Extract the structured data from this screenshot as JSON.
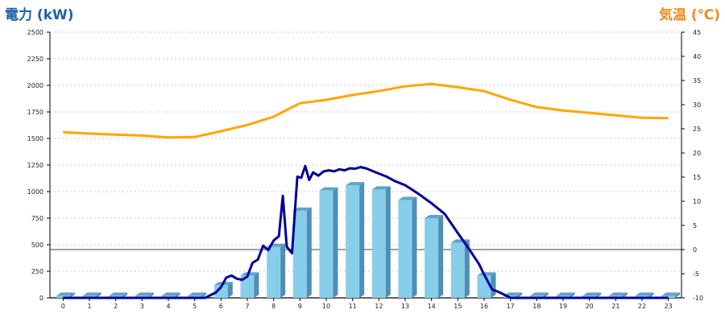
{
  "chart_data": {
    "type": "bar",
    "left_axis_title": "電力 (kW)",
    "right_axis_title": "気温 (℃)",
    "x_categories": [
      "0",
      "1",
      "2",
      "3",
      "4",
      "5",
      "6",
      "7",
      "8",
      "9",
      "10",
      "11",
      "12",
      "13",
      "14",
      "15",
      "16",
      "17",
      "18",
      "19",
      "20",
      "21",
      "22",
      "23"
    ],
    "left_ylim": [
      0,
      2500
    ],
    "left_ticks": [
      "0",
      "250",
      "500",
      "750",
      "1000",
      "1250",
      "1500",
      "1750",
      "2000",
      "2250",
      "2500"
    ],
    "right_ylim": [
      -10,
      45
    ],
    "right_ticks": [
      "-10",
      "-5",
      "0",
      "5",
      "10",
      "15",
      "20",
      "25",
      "30",
      "35",
      "40",
      "45"
    ],
    "grid": true,
    "series": [
      {
        "kind": "bar",
        "axis": "left",
        "color": "#87ceeb",
        "values": [
          20,
          20,
          20,
          20,
          20,
          20,
          120,
          210,
          480,
          820,
          1010,
          1060,
          1020,
          920,
          750,
          520,
          210,
          20,
          20,
          20,
          20,
          20,
          20,
          20
        ]
      },
      {
        "kind": "line",
        "axis": "left",
        "color": "#000099",
        "points": [
          [
            0,
            0
          ],
          [
            1,
            0
          ],
          [
            2,
            0
          ],
          [
            3,
            0
          ],
          [
            4,
            0
          ],
          [
            5,
            0
          ],
          [
            5.4,
            0
          ],
          [
            5.8,
            50
          ],
          [
            6.0,
            100
          ],
          [
            6.2,
            190
          ],
          [
            6.4,
            210
          ],
          [
            6.6,
            180
          ],
          [
            6.8,
            170
          ],
          [
            7.0,
            200
          ],
          [
            7.2,
            330
          ],
          [
            7.4,
            360
          ],
          [
            7.6,
            490
          ],
          [
            7.8,
            450
          ],
          [
            8.0,
            540
          ],
          [
            8.2,
            580
          ],
          [
            8.35,
            960
          ],
          [
            8.5,
            480
          ],
          [
            8.7,
            420
          ],
          [
            8.9,
            1140
          ],
          [
            9.05,
            1130
          ],
          [
            9.2,
            1240
          ],
          [
            9.35,
            1110
          ],
          [
            9.5,
            1180
          ],
          [
            9.7,
            1150
          ],
          [
            9.9,
            1190
          ],
          [
            10.1,
            1200
          ],
          [
            10.3,
            1190
          ],
          [
            10.5,
            1210
          ],
          [
            10.7,
            1200
          ],
          [
            10.9,
            1220
          ],
          [
            11.1,
            1215
          ],
          [
            11.3,
            1230
          ],
          [
            11.5,
            1220
          ],
          [
            11.7,
            1200
          ],
          [
            12.0,
            1170
          ],
          [
            12.3,
            1140
          ],
          [
            12.6,
            1100
          ],
          [
            13.0,
            1060
          ],
          [
            13.5,
            980
          ],
          [
            14.0,
            890
          ],
          [
            14.5,
            790
          ],
          [
            15.0,
            610
          ],
          [
            15.4,
            470
          ],
          [
            15.8,
            320
          ],
          [
            16.0,
            220
          ],
          [
            16.3,
            80
          ],
          [
            16.6,
            50
          ],
          [
            17.0,
            0
          ],
          [
            18,
            0
          ],
          [
            19,
            0
          ],
          [
            20,
            0
          ],
          [
            21,
            0
          ],
          [
            22,
            0
          ],
          [
            23,
            0
          ]
        ]
      },
      {
        "kind": "line",
        "axis": "right",
        "color": "#ffa500",
        "points": [
          [
            0,
            24.3
          ],
          [
            1,
            24.0
          ],
          [
            2,
            23.8
          ],
          [
            3,
            23.6
          ],
          [
            4,
            23.2
          ],
          [
            5,
            23.3
          ],
          [
            6,
            24.5
          ],
          [
            7,
            25.8
          ],
          [
            8,
            27.5
          ],
          [
            9,
            30.3
          ],
          [
            10,
            31.0
          ],
          [
            11,
            32.0
          ],
          [
            12,
            32.8
          ],
          [
            13,
            33.8
          ],
          [
            14,
            34.3
          ],
          [
            15,
            33.6
          ],
          [
            16,
            32.8
          ],
          [
            17,
            31.0
          ],
          [
            18,
            29.5
          ],
          [
            19,
            28.8
          ],
          [
            20,
            28.3
          ],
          [
            21,
            27.8
          ],
          [
            22,
            27.3
          ],
          [
            23,
            27.2
          ]
        ]
      }
    ]
  }
}
